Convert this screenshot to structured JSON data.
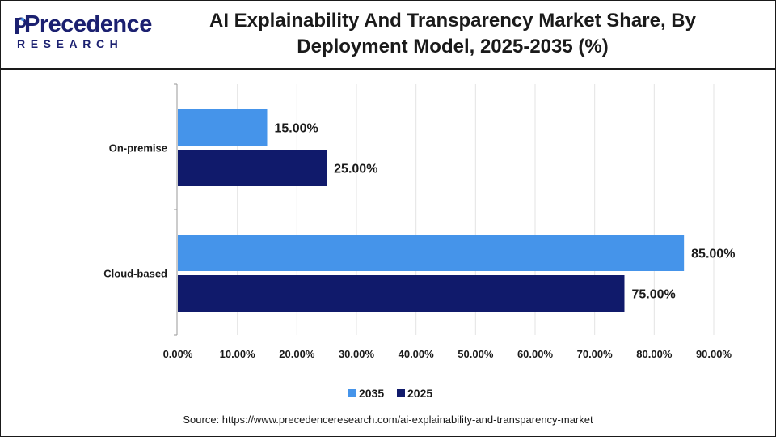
{
  "logo": {
    "word": "Precedence",
    "sub": "RESEARCH"
  },
  "title_line1": "AI Explainability And Transparency Market Share, By",
  "title_line2": "Deployment Model, 2025-2035 (%)",
  "source": "Source: https://www.precedenceresearch.com/ai-explainability-and-transparency-market",
  "colors": {
    "2035": "#4594ea",
    "2025": "#101a6b",
    "grid": "#e3e3e3",
    "axis": "#9a9a9a",
    "text": "#1a1a1a"
  },
  "chart_data": {
    "type": "bar",
    "orientation": "horizontal",
    "categories": [
      "On-premise",
      "Cloud-based"
    ],
    "series": [
      {
        "name": "2035",
        "values": [
          15,
          85
        ],
        "labels": [
          "15.00%",
          "85.00%"
        ]
      },
      {
        "name": "2025",
        "values": [
          25,
          75
        ],
        "labels": [
          "25.00%",
          "75.00%"
        ]
      }
    ],
    "xlim": [
      0,
      90
    ],
    "xticks": [
      "0.00%",
      "10.00%",
      "20.00%",
      "30.00%",
      "40.00%",
      "50.00%",
      "60.00%",
      "70.00%",
      "80.00%",
      "90.00%"
    ],
    "grid": true,
    "legend_position": "bottom"
  }
}
